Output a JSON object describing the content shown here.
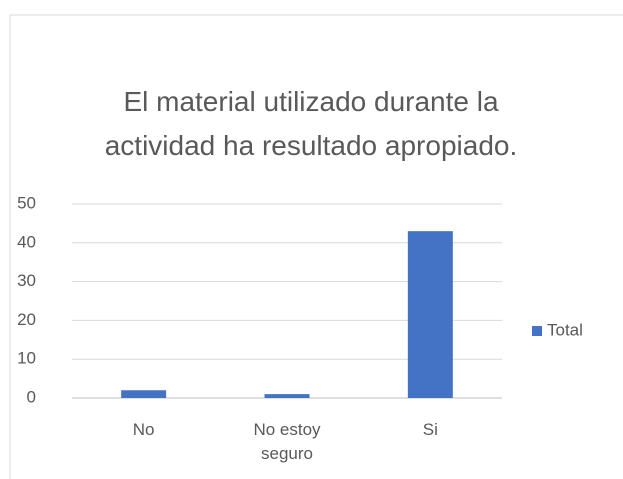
{
  "chart_data": {
    "type": "bar",
    "title": "El material utilizado durante la actividad ha resultado apropiado.",
    "categories": [
      "No",
      "No estoy seguro",
      "Si"
    ],
    "series": [
      {
        "name": "Total",
        "color": "#4472c4",
        "values": [
          2,
          1,
          43
        ]
      }
    ],
    "ylim": [
      0,
      50
    ],
    "yticks": [
      0,
      10,
      20,
      30,
      40,
      50
    ],
    "grid": true,
    "legend": "right"
  }
}
